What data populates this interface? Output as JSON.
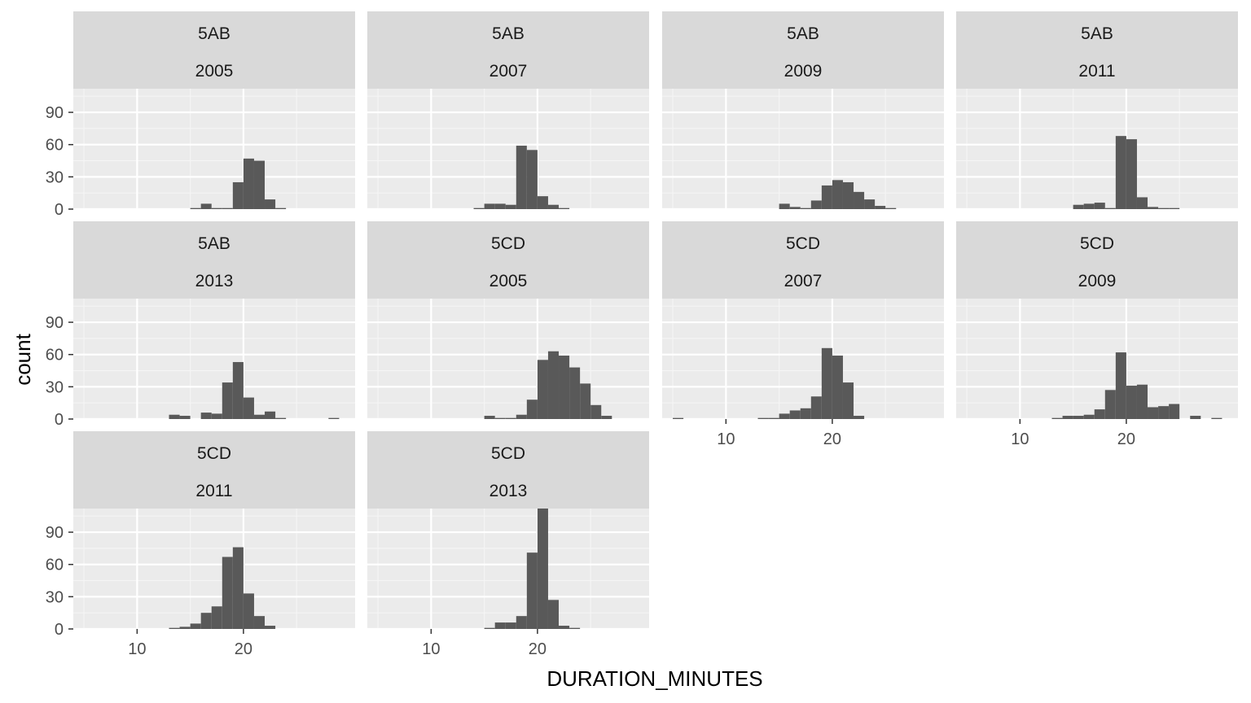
{
  "chart_data": {
    "type": "histogram-facets",
    "xlabel": "DURATION_MINUTES",
    "ylabel": "count",
    "xlim": [
      4,
      30.5
    ],
    "ylim": [
      0,
      112
    ],
    "x_ticks": [
      10,
      20
    ],
    "x_minor_ticks": [
      5,
      15,
      25
    ],
    "y_ticks": [
      0,
      30,
      60,
      90
    ],
    "y_minor_ticks": [
      15,
      45,
      75,
      105
    ],
    "bin_width": 1,
    "grid": true,
    "colors": {
      "bar": "#595959",
      "panel_background": "#ebebeb",
      "strip_background": "#d9d9d9",
      "grid_major": "#ffffff",
      "grid_minor": "#f5f5f5"
    },
    "panels": [
      {
        "facet": "5AB",
        "year": "2005",
        "bin_start": 15,
        "counts": [
          1,
          5,
          1,
          1,
          25,
          47,
          45,
          9,
          1
        ]
      },
      {
        "facet": "5AB",
        "year": "2007",
        "bin_start": 14,
        "counts": [
          1,
          5,
          5,
          4,
          59,
          55,
          12,
          4,
          1
        ]
      },
      {
        "facet": "5AB",
        "year": "2009",
        "bin_start": 15,
        "counts": [
          5,
          2,
          1,
          8,
          22,
          27,
          25,
          16,
          9,
          3,
          1
        ]
      },
      {
        "facet": "5AB",
        "year": "2011",
        "bin_start": 15,
        "counts": [
          4,
          5,
          6,
          1,
          68,
          65,
          11,
          2,
          1,
          1
        ]
      },
      {
        "facet": "5AB",
        "year": "2013",
        "bin_start": 13,
        "counts": [
          4,
          3,
          0,
          6,
          5,
          34,
          53,
          20,
          4,
          7,
          1,
          0,
          0,
          0,
          0,
          1
        ]
      },
      {
        "facet": "5CD",
        "year": "2005",
        "bin_start": 15,
        "counts": [
          3,
          1,
          1,
          4,
          18,
          55,
          63,
          59,
          48,
          33,
          13,
          3
        ]
      },
      {
        "facet": "5CD",
        "year": "2007",
        "bin_start": 5,
        "counts": [
          1,
          0,
          0,
          0,
          0,
          0,
          0,
          0,
          1,
          1,
          5,
          8,
          10,
          21,
          66,
          59,
          34,
          3
        ]
      },
      {
        "facet": "5CD",
        "year": "2009",
        "bin_start": 13,
        "counts": [
          1,
          3,
          3,
          4,
          9,
          27,
          62,
          31,
          32,
          11,
          12,
          14,
          0,
          3,
          0,
          1
        ]
      },
      {
        "facet": "5CD",
        "year": "2011",
        "bin_start": 13,
        "counts": [
          1,
          2,
          5,
          15,
          21,
          67,
          76,
          33,
          12,
          3
        ]
      },
      {
        "facet": "5CD",
        "year": "2013",
        "bin_start": 15,
        "counts": [
          1,
          6,
          6,
          12,
          71,
          112,
          27,
          3,
          1
        ]
      }
    ]
  }
}
